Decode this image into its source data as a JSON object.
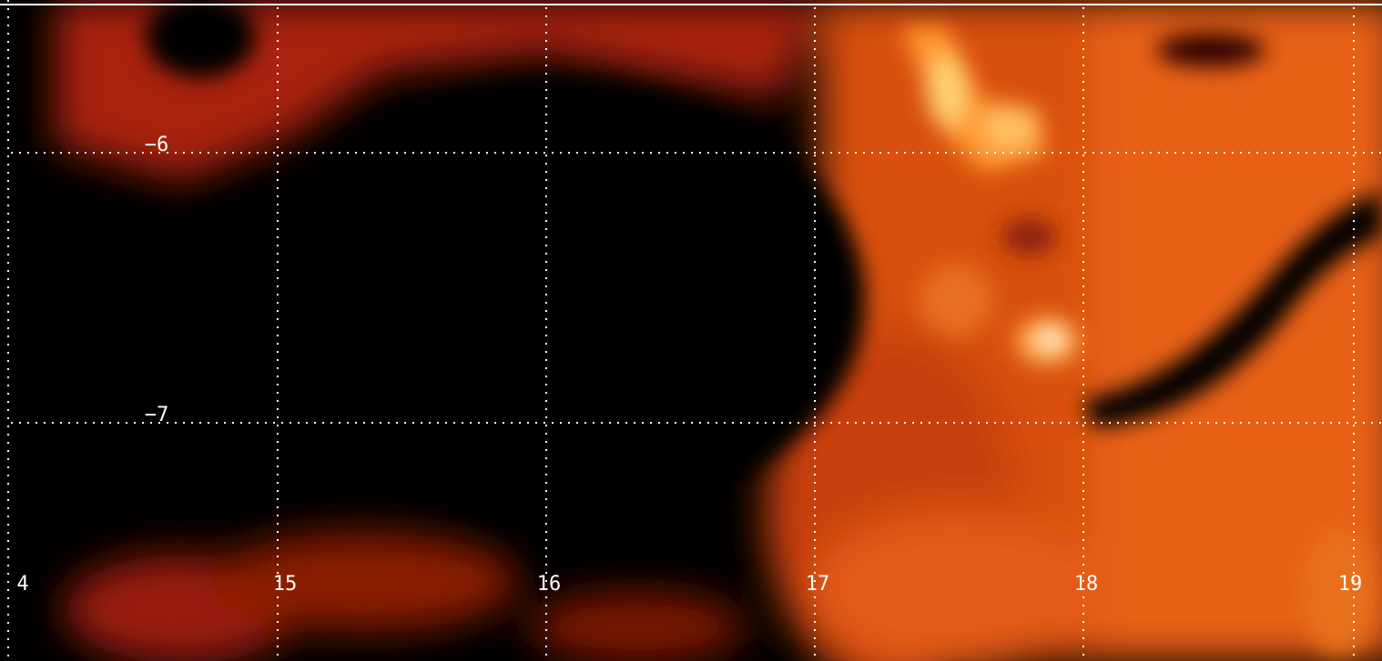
{
  "grid": {
    "x_labels": [
      "4",
      "15",
      "16",
      "17",
      "18",
      "19"
    ],
    "y_labels": [
      "−6",
      "−7"
    ]
  }
}
